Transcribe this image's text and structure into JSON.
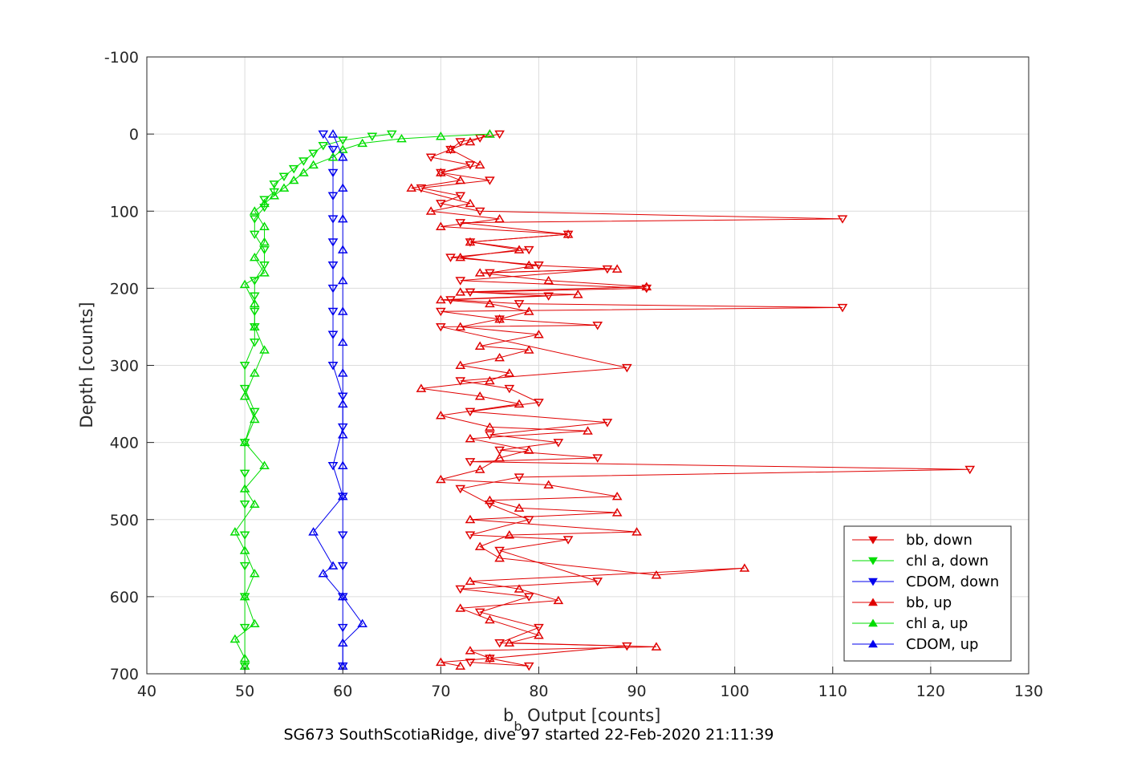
{
  "chart_data": {
    "type": "scatter",
    "xlabel_main": "b",
    "xlabel_sub": "b",
    "xlabel_rest": " Output [counts]",
    "ylabel": "Depth [counts]",
    "caption": "SG673 SouthScotiaRidge, dive 97 started 22-Feb-2020 21:11:39",
    "xlim": [
      40,
      130
    ],
    "ylim": [
      -100,
      700
    ],
    "y_reversed": true,
    "grid": true,
    "legend_placement": "bottom-right",
    "x_ticks": [
      "40",
      "50",
      "60",
      "70",
      "80",
      "90",
      "100",
      "110",
      "120",
      "130"
    ],
    "y_ticks": [
      "-100",
      "0",
      "100",
      "200",
      "300",
      "400",
      "500",
      "600",
      "700"
    ],
    "series": [
      {
        "name": "bb, down",
        "color": "#e00000",
        "marker": "triangle-down",
        "line": true,
        "points": [
          [
            76,
            0
          ],
          [
            74,
            5
          ],
          [
            72,
            10
          ],
          [
            71,
            20
          ],
          [
            69,
            30
          ],
          [
            73,
            40
          ],
          [
            70,
            50
          ],
          [
            75,
            60
          ],
          [
            68,
            70
          ],
          [
            72,
            80
          ],
          [
            70,
            90
          ],
          [
            74,
            100
          ],
          [
            111,
            110
          ],
          [
            72,
            115
          ],
          [
            83,
            130
          ],
          [
            73,
            140
          ],
          [
            79,
            150
          ],
          [
            71,
            160
          ],
          [
            80,
            170
          ],
          [
            75,
            180
          ],
          [
            87,
            175
          ],
          [
            72,
            190
          ],
          [
            91,
            200
          ],
          [
            73,
            205
          ],
          [
            81,
            210
          ],
          [
            71,
            215
          ],
          [
            78,
            220
          ],
          [
            111,
            225
          ],
          [
            70,
            230
          ],
          [
            76,
            240
          ],
          [
            86,
            248
          ],
          [
            70,
            250
          ],
          [
            89,
            303
          ],
          [
            72,
            320
          ],
          [
            77,
            330
          ],
          [
            80,
            348
          ],
          [
            73,
            360
          ],
          [
            87,
            374
          ],
          [
            75,
            390
          ],
          [
            82,
            400
          ],
          [
            76,
            410
          ],
          [
            86,
            420
          ],
          [
            73,
            425
          ],
          [
            124,
            435
          ],
          [
            78,
            445
          ],
          [
            72,
            460
          ],
          [
            75,
            480
          ],
          [
            79,
            500
          ],
          [
            73,
            520
          ],
          [
            83,
            526
          ],
          [
            76,
            540
          ],
          [
            86,
            580
          ],
          [
            72,
            590
          ],
          [
            79,
            600
          ],
          [
            74,
            620
          ],
          [
            80,
            640
          ],
          [
            76,
            660
          ],
          [
            89,
            664
          ],
          [
            75,
            680
          ],
          [
            79,
            690
          ],
          [
            73,
            685
          ]
        ]
      },
      {
        "name": "chl a, down",
        "color": "#00dd00",
        "marker": "triangle-down",
        "line": true,
        "points": [
          [
            65,
            0
          ],
          [
            63,
            3
          ],
          [
            60,
            8
          ],
          [
            58,
            15
          ],
          [
            57,
            25
          ],
          [
            56,
            35
          ],
          [
            55,
            45
          ],
          [
            54,
            55
          ],
          [
            53,
            65
          ],
          [
            53,
            75
          ],
          [
            52,
            85
          ],
          [
            52,
            95
          ],
          [
            51,
            110
          ],
          [
            51,
            130
          ],
          [
            52,
            150
          ],
          [
            52,
            170
          ],
          [
            51,
            190
          ],
          [
            51,
            210
          ],
          [
            51,
            230
          ],
          [
            51,
            250
          ],
          [
            51,
            270
          ],
          [
            50,
            300
          ],
          [
            50,
            330
          ],
          [
            51,
            360
          ],
          [
            50,
            400
          ],
          [
            50,
            440
          ],
          [
            50,
            480
          ],
          [
            50,
            520
          ],
          [
            50,
            560
          ],
          [
            50,
            600
          ],
          [
            50,
            640
          ],
          [
            50,
            690
          ]
        ]
      },
      {
        "name": "CDOM, down",
        "color": "#0000ee",
        "marker": "triangle-down",
        "line": true,
        "points": [
          [
            58,
            0
          ],
          [
            59,
            20
          ],
          [
            59,
            50
          ],
          [
            59,
            80
          ],
          [
            59,
            110
          ],
          [
            59,
            140
          ],
          [
            59,
            170
          ],
          [
            59,
            200
          ],
          [
            59,
            230
          ],
          [
            59,
            260
          ],
          [
            59,
            300
          ],
          [
            60,
            340
          ],
          [
            60,
            380
          ],
          [
            59,
            430
          ],
          [
            60,
            470
          ],
          [
            60,
            520
          ],
          [
            60,
            560
          ],
          [
            60,
            600
          ],
          [
            60,
            640
          ],
          [
            60,
            690
          ]
        ]
      },
      {
        "name": "bb, up",
        "color": "#e00000",
        "marker": "triangle-up",
        "line": true,
        "points": [
          [
            75,
            0
          ],
          [
            73,
            10
          ],
          [
            71,
            20
          ],
          [
            74,
            40
          ],
          [
            70,
            50
          ],
          [
            72,
            60
          ],
          [
            67,
            70
          ],
          [
            73,
            90
          ],
          [
            69,
            100
          ],
          [
            76,
            110
          ],
          [
            70,
            120
          ],
          [
            83,
            130
          ],
          [
            73,
            140
          ],
          [
            78,
            150
          ],
          [
            72,
            160
          ],
          [
            79,
            170
          ],
          [
            88,
            175
          ],
          [
            74,
            180
          ],
          [
            81,
            190
          ],
          [
            91,
            198
          ],
          [
            72,
            205
          ],
          [
            84,
            208
          ],
          [
            70,
            215
          ],
          [
            75,
            220
          ],
          [
            79,
            230
          ],
          [
            76,
            240
          ],
          [
            72,
            250
          ],
          [
            80,
            260
          ],
          [
            74,
            275
          ],
          [
            79,
            280
          ],
          [
            76,
            290
          ],
          [
            72,
            300
          ],
          [
            77,
            310
          ],
          [
            75,
            320
          ],
          [
            68,
            330
          ],
          [
            74,
            340
          ],
          [
            78,
            350
          ],
          [
            70,
            365
          ],
          [
            75,
            380
          ],
          [
            85,
            385
          ],
          [
            73,
            395
          ],
          [
            79,
            410
          ],
          [
            76,
            420
          ],
          [
            74,
            435
          ],
          [
            70,
            448
          ],
          [
            81,
            455
          ],
          [
            88,
            470
          ],
          [
            75,
            475
          ],
          [
            78,
            485
          ],
          [
            88,
            491
          ],
          [
            73,
            500
          ],
          [
            90,
            516
          ],
          [
            77,
            520
          ],
          [
            74,
            535
          ],
          [
            76,
            550
          ],
          [
            92,
            572
          ],
          [
            101,
            563
          ],
          [
            73,
            580
          ],
          [
            78,
            590
          ],
          [
            82,
            605
          ],
          [
            72,
            615
          ],
          [
            75,
            630
          ],
          [
            80,
            650
          ],
          [
            77,
            660
          ],
          [
            92,
            665
          ],
          [
            73,
            670
          ],
          [
            75,
            680
          ],
          [
            70,
            685
          ],
          [
            72,
            690
          ]
        ]
      },
      {
        "name": "chl a, up",
        "color": "#00dd00",
        "marker": "triangle-up",
        "line": true,
        "points": [
          [
            75,
            0
          ],
          [
            70,
            3
          ],
          [
            66,
            6
          ],
          [
            62,
            12
          ],
          [
            60,
            20
          ],
          [
            59,
            30
          ],
          [
            57,
            40
          ],
          [
            56,
            50
          ],
          [
            55,
            60
          ],
          [
            54,
            70
          ],
          [
            53,
            80
          ],
          [
            52,
            90
          ],
          [
            51,
            100
          ],
          [
            52,
            120
          ],
          [
            52,
            140
          ],
          [
            51,
            160
          ],
          [
            52,
            180
          ],
          [
            50,
            195
          ],
          [
            51,
            220
          ],
          [
            51,
            250
          ],
          [
            52,
            280
          ],
          [
            51,
            310
          ],
          [
            50,
            340
          ],
          [
            51,
            370
          ],
          [
            50,
            400
          ],
          [
            52,
            430
          ],
          [
            50,
            460
          ],
          [
            51,
            480
          ],
          [
            49,
            516
          ],
          [
            50,
            540
          ],
          [
            51,
            570
          ],
          [
            50,
            600
          ],
          [
            51,
            635
          ],
          [
            49,
            655
          ],
          [
            50,
            680
          ],
          [
            50,
            690
          ]
        ]
      },
      {
        "name": "CDOM, up",
        "color": "#0000ee",
        "marker": "triangle-up",
        "line": true,
        "points": [
          [
            59,
            0
          ],
          [
            60,
            30
          ],
          [
            60,
            70
          ],
          [
            60,
            110
          ],
          [
            60,
            150
          ],
          [
            60,
            190
          ],
          [
            60,
            230
          ],
          [
            60,
            270
          ],
          [
            60,
            310
          ],
          [
            60,
            350
          ],
          [
            60,
            390
          ],
          [
            60,
            430
          ],
          [
            60,
            470
          ],
          [
            57,
            516
          ],
          [
            59,
            560
          ],
          [
            58,
            570
          ],
          [
            60,
            600
          ],
          [
            62,
            635
          ],
          [
            60,
            660
          ],
          [
            60,
            690
          ]
        ]
      }
    ]
  }
}
